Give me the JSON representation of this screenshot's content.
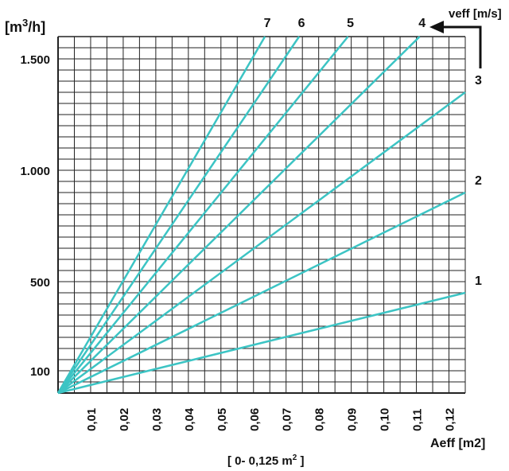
{
  "chart_data": {
    "type": "line",
    "ylabel_main": "[m",
    "ylabel_sup": "3",
    "ylabel_tail": "/h]",
    "xlabel": "Aeff [m2]",
    "x_range_main": "[ 0- 0,125 m",
    "x_range_sup": "2",
    "x_range_tail": " ]",
    "series_label": "veff [m/s]",
    "xlim": [
      0,
      0.125
    ],
    "ylim": [
      0,
      1600
    ],
    "x_ticks": [
      {
        "value": 0.01,
        "label": "0,01"
      },
      {
        "value": 0.02,
        "label": "0,02"
      },
      {
        "value": 0.03,
        "label": "0,03"
      },
      {
        "value": 0.04,
        "label": "0,04"
      },
      {
        "value": 0.05,
        "label": "0,05"
      },
      {
        "value": 0.06,
        "label": "0,06"
      },
      {
        "value": 0.07,
        "label": "0,07"
      },
      {
        "value": 0.08,
        "label": "0,08"
      },
      {
        "value": 0.09,
        "label": "0,09"
      },
      {
        "value": 0.1,
        "label": "0,10"
      },
      {
        "value": 0.11,
        "label": "0,11"
      },
      {
        "value": 0.12,
        "label": "0,12"
      }
    ],
    "y_ticks": [
      {
        "value": 100,
        "label": "100"
      },
      {
        "value": 500,
        "label": "500"
      },
      {
        "value": 1000,
        "label": "1.000"
      },
      {
        "value": 1500,
        "label": "1.500"
      }
    ],
    "grid": true,
    "series": [
      {
        "label": "1",
        "velocity": 1,
        "x": [
          0,
          0.125
        ],
        "y": [
          0,
          450
        ]
      },
      {
        "label": "2",
        "velocity": 2,
        "x": [
          0,
          0.125
        ],
        "y": [
          0,
          900
        ]
      },
      {
        "label": "3",
        "velocity": 3,
        "x": [
          0,
          0.125
        ],
        "y": [
          0,
          1350
        ]
      },
      {
        "label": "4",
        "velocity": 4,
        "x": [
          0,
          0.111
        ],
        "y": [
          0,
          1600
        ]
      },
      {
        "label": "5",
        "velocity": 5,
        "x": [
          0,
          0.089
        ],
        "y": [
          0,
          1600
        ]
      },
      {
        "label": "6",
        "velocity": 6,
        "x": [
          0,
          0.074
        ],
        "y": [
          0,
          1600
        ]
      },
      {
        "label": "7",
        "velocity": 7,
        "x": [
          0,
          0.0635
        ],
        "y": [
          0,
          1600
        ]
      }
    ],
    "colors": {
      "line": "#3cc4c4",
      "grid": "#222222",
      "text": "#111111"
    }
  }
}
